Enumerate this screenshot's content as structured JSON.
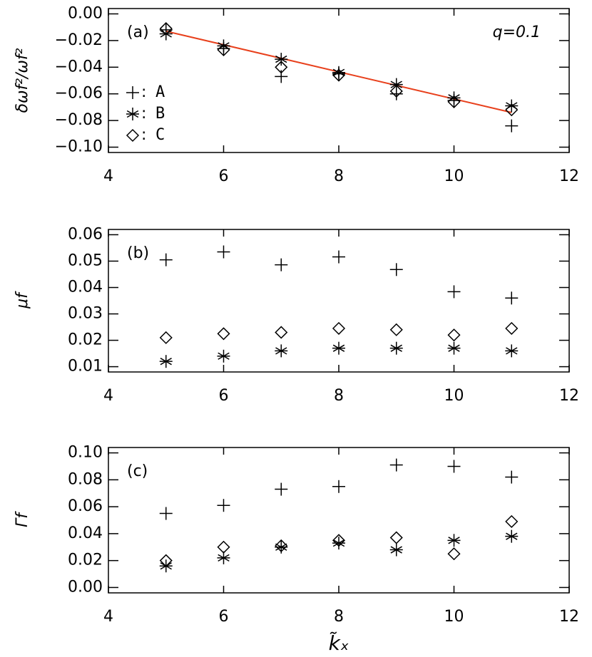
{
  "chart_data": [
    {
      "type": "scatter",
      "panel_label": "(a)",
      "annotation": "q=0.1",
      "ylabel": "δωf²/ωf²",
      "x": [
        5,
        6,
        7,
        8,
        9,
        10,
        11
      ],
      "xlim": [
        4,
        12
      ],
      "xticks": [
        4,
        6,
        8,
        10,
        12
      ],
      "ylim": [
        -0.104,
        0.004
      ],
      "yticks": [
        {
          "value": -0.1,
          "label": "−0.10"
        },
        {
          "value": -0.08,
          "label": "−0.08"
        },
        {
          "value": -0.06,
          "label": "−0.06"
        },
        {
          "value": -0.04,
          "label": "−0.04"
        },
        {
          "value": -0.02,
          "label": "−0.02"
        },
        {
          "value": 0,
          "label": "0.00"
        }
      ],
      "legend": "lower left",
      "legend_separator": ":",
      "series": [
        {
          "name": "A",
          "marker": "plus",
          "color": "#000000",
          "values": [
            -0.012,
            -0.026,
            -0.047,
            -0.045,
            -0.06,
            -0.065,
            -0.084
          ]
        },
        {
          "name": "B",
          "marker": "asterisk",
          "color": "#000000",
          "values": [
            -0.015,
            -0.024,
            -0.034,
            -0.044,
            -0.053,
            -0.063,
            -0.069
          ]
        },
        {
          "name": "C",
          "marker": "diamond",
          "color": "#000000",
          "values": [
            -0.011,
            -0.027,
            -0.04,
            -0.046,
            -0.058,
            -0.066,
            -0.072
          ]
        }
      ],
      "fit": {
        "x": [
          5,
          11
        ],
        "values": [
          -0.013,
          -0.074
        ],
        "color": "#e8401c"
      }
    },
    {
      "type": "scatter",
      "panel_label": "(b)",
      "ylabel": "μf",
      "x": [
        5,
        6,
        7,
        8,
        9,
        10,
        11
      ],
      "xlim": [
        4,
        12
      ],
      "xticks": [
        4,
        6,
        8,
        10,
        12
      ],
      "ylim": [
        0.008,
        0.062
      ],
      "yticks": [
        {
          "value": 0.01,
          "label": "0.01"
        },
        {
          "value": 0.02,
          "label": "0.02"
        },
        {
          "value": 0.03,
          "label": "0.03"
        },
        {
          "value": 0.04,
          "label": "0.04"
        },
        {
          "value": 0.05,
          "label": "0.05"
        },
        {
          "value": 0.06,
          "label": "0.06"
        }
      ],
      "series": [
        {
          "marker": "plus",
          "color": "#000000",
          "values": [
            0.0505,
            0.0535,
            0.0486,
            0.0516,
            0.0468,
            0.0384,
            0.036
          ]
        },
        {
          "marker": "asterisk",
          "color": "#000000",
          "values": [
            0.012,
            0.014,
            0.016,
            0.017,
            0.017,
            0.017,
            0.016
          ]
        },
        {
          "marker": "diamond",
          "color": "#000000",
          "values": [
            0.021,
            0.0225,
            0.023,
            0.0245,
            0.024,
            0.022,
            0.0245
          ]
        }
      ]
    },
    {
      "type": "scatter",
      "panel_label": "(c)",
      "ylabel": "Γf",
      "xlabel": "k̃ₓ",
      "x": [
        5,
        6,
        7,
        8,
        9,
        10,
        11
      ],
      "xlim": [
        4,
        12
      ],
      "xticks": [
        4,
        6,
        8,
        10,
        12
      ],
      "ylim": [
        -0.004,
        0.104
      ],
      "yticks": [
        {
          "value": 0,
          "label": "0.00"
        },
        {
          "value": 0.02,
          "label": "0.02"
        },
        {
          "value": 0.04,
          "label": "0.04"
        },
        {
          "value": 0.06,
          "label": "0.06"
        },
        {
          "value": 0.08,
          "label": "0.08"
        },
        {
          "value": 0.1,
          "label": "0.10"
        }
      ],
      "series": [
        {
          "marker": "plus",
          "color": "#000000",
          "values": [
            0.055,
            0.061,
            0.073,
            0.075,
            0.091,
            0.09,
            0.082
          ]
        },
        {
          "marker": "asterisk",
          "color": "#000000",
          "values": [
            0.016,
            0.022,
            0.03,
            0.033,
            0.028,
            0.035,
            0.038
          ]
        },
        {
          "marker": "diamond",
          "color": "#000000",
          "values": [
            0.02,
            0.03,
            0.031,
            0.035,
            0.037,
            0.025,
            0.049
          ]
        }
      ]
    }
  ]
}
